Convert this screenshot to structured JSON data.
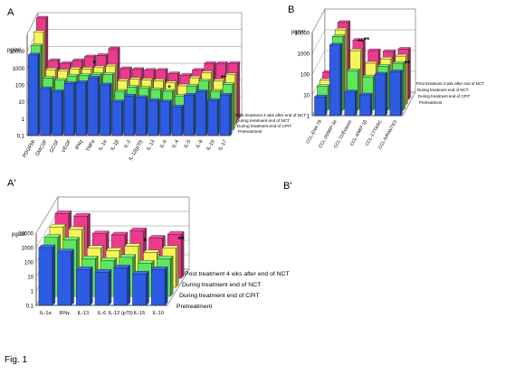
{
  "figure": {
    "caption": "Fig. 1"
  },
  "panels": {
    "A": "A",
    "B": "B",
    "A2": "A'",
    "B2": "B'"
  },
  "chart_data": [
    {
      "panel": "A",
      "type": "bar",
      "ylabel": "pg/ml",
      "scale": "log",
      "yticks": [
        "0.1",
        "1",
        "10",
        "100",
        "1000",
        "10000"
      ],
      "ytick_values": [
        0.1,
        1,
        10,
        100,
        1000,
        10000
      ],
      "ylim": [
        0.1,
        100000
      ],
      "grid": true,
      "categories": [
        "PDGFbb",
        "GMCSF",
        "GCSF",
        "VEGF",
        "IFNγ",
        "TNFα",
        "IL-1α",
        "IL-1β",
        "IL-2",
        "IL-12(p70)",
        "IL-13",
        "IL-6",
        "IL-4",
        "IL-5",
        "IL-8",
        "IL-10",
        "IL-17"
      ],
      "series": [
        {
          "name": "Pretreatment",
          "color": "#2d5be3",
          "values": [
            6000,
            60,
            40,
            120,
            140,
            260,
            100,
            10,
            22,
            18,
            12,
            10,
            5,
            25,
            40,
            12,
            25
          ]
        },
        {
          "name": "During treatment end of CPIT",
          "color": "#5ee65e",
          "values": [
            10000,
            120,
            90,
            160,
            170,
            200,
            200,
            20,
            35,
            30,
            25,
            20,
            10,
            40,
            80,
            20,
            50
          ]
        },
        {
          "name": "During treatment end of NCT",
          "color": "#f5f55a",
          "values": [
            30000,
            180,
            150,
            200,
            200,
            240,
            300,
            40,
            50,
            45,
            40,
            30,
            20,
            60,
            120,
            40,
            90
          ]
        },
        {
          "name": "Post treatment 4 wks after end of NCT",
          "color": "#ee3a8c",
          "values": [
            100000,
            300,
            200,
            300,
            500,
            600,
            1500,
            100,
            90,
            80,
            80,
            50,
            40,
            80,
            200,
            200,
            200
          ]
        }
      ],
      "annotations": [
        "*",
        "*",
        "**"
      ]
    },
    {
      "panel": "B",
      "type": "bar",
      "ylabel": "pg/ml",
      "scale": "log",
      "yticks": [
        "1",
        "10",
        "100",
        "1000",
        "10000"
      ],
      "ytick_values": [
        1,
        10,
        100,
        1000,
        10000
      ],
      "ylim": [
        1,
        10000
      ],
      "grid": true,
      "categories": [
        "CCL-ENA-78",
        "CCL-20/MIP-3α",
        "CCL-11/Eotaxin",
        "CCL-4/MIP-1β",
        "CCL-17/TARC",
        "CCL-5/RANTES"
      ],
      "series": [
        {
          "name": "Pretreatment",
          "color": "#2d5be3",
          "values": [
            8,
            2500,
            14,
            10,
            100,
            130
          ]
        },
        {
          "name": "During treatment end of CPIT",
          "color": "#5ee65e",
          "values": [
            14,
            3500,
            80,
            40,
            130,
            180
          ]
        },
        {
          "name": "During treatment end of NCT",
          "color": "#f5f55a",
          "values": [
            15,
            4000,
            400,
            100,
            160,
            220
          ]
        },
        {
          "name": "Post treatment 4 wks after end of NCT",
          "color": "#ee3a8c",
          "values": [
            20,
            5000,
            700,
            220,
            200,
            260
          ]
        }
      ],
      "annotations": [
        "**",
        "**",
        "**"
      ]
    },
    {
      "panel": "A'",
      "type": "bar",
      "ylabel": "pg/ml",
      "scale": "log",
      "yticks": [
        "0.1",
        "1",
        "10",
        "100",
        "1000",
        "10000"
      ],
      "ytick_values": [
        0.1,
        1,
        10,
        100,
        1000,
        10000
      ],
      "ylim": [
        0.1,
        10000
      ],
      "grid": true,
      "categories": [
        "IL-1α",
        "IFNγ",
        "IL-13",
        "IL-6",
        "IL-12 (p70)",
        "IL-15",
        "IL-10"
      ],
      "series": [
        {
          "name": "Pretreatment",
          "color": "#2d5be3",
          "values": [
            1000,
            500,
            30,
            20,
            40,
            15,
            30
          ]
        },
        {
          "name": "During treatment end of CPIT",
          "color": "#5ee65e",
          "values": [
            1200,
            800,
            40,
            30,
            50,
            20,
            40
          ]
        },
        {
          "name": "During treatment end of NCT",
          "color": "#f5f55a",
          "values": [
            1500,
            1000,
            50,
            35,
            70,
            25,
            50
          ]
        },
        {
          "name": "Post treatment 4 wks after end of NCT",
          "color": "#ee3a8c",
          "values": [
            3000,
            2000,
            120,
            100,
            200,
            60,
            110
          ]
        }
      ],
      "annotations": [
        "*",
        "**"
      ]
    }
  ]
}
